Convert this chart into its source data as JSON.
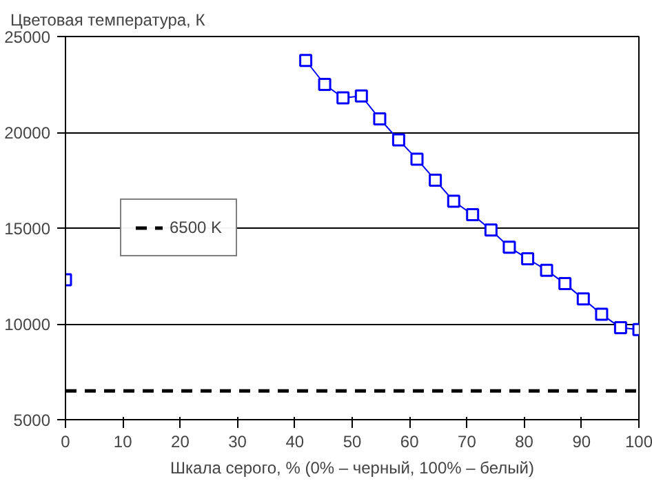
{
  "chart_data": {
    "type": "line",
    "ylabel": "Цветовая температура, К",
    "xlabel": "Шкала серого, % (0% – черный, 100% – белый)",
    "x": [
      0,
      3.2,
      6.5,
      9.7,
      12.9,
      16.1,
      19.4,
      22.6,
      25.8,
      29.0,
      32.3,
      35.5,
      38.7,
      41.9,
      45.2,
      48.4,
      51.6,
      54.8,
      58.1,
      61.3,
      64.5,
      67.7,
      71.0,
      74.2,
      77.4,
      80.6,
      83.9,
      87.1,
      90.3,
      93.5,
      96.8,
      100
    ],
    "series": [
      {
        "color": "#0000ff",
        "values": [
          12300,
          null,
          null,
          null,
          null,
          null,
          null,
          null,
          null,
          null,
          null,
          null,
          null,
          23750,
          22500,
          21800,
          21900,
          20700,
          19600,
          18600,
          17500,
          16400,
          15700,
          14900,
          14000,
          13400,
          12800,
          12100,
          11300,
          10500,
          9800,
          9700
        ]
      }
    ],
    "xlim": [
      0,
      100
    ],
    "xticks": [
      0,
      10,
      20,
      30,
      40,
      50,
      60,
      70,
      80,
      90,
      100
    ],
    "ylim": [
      5000,
      25000
    ],
    "yticks": [
      5000,
      10000,
      15000,
      20000,
      25000
    ],
    "ref_lines": [
      {
        "axis": "y",
        "value": 6500,
        "label": "6500 K",
        "color": "#000000",
        "line_style": "dashed"
      }
    ],
    "grid": "y",
    "legend": "left",
    "marker": "square"
  }
}
